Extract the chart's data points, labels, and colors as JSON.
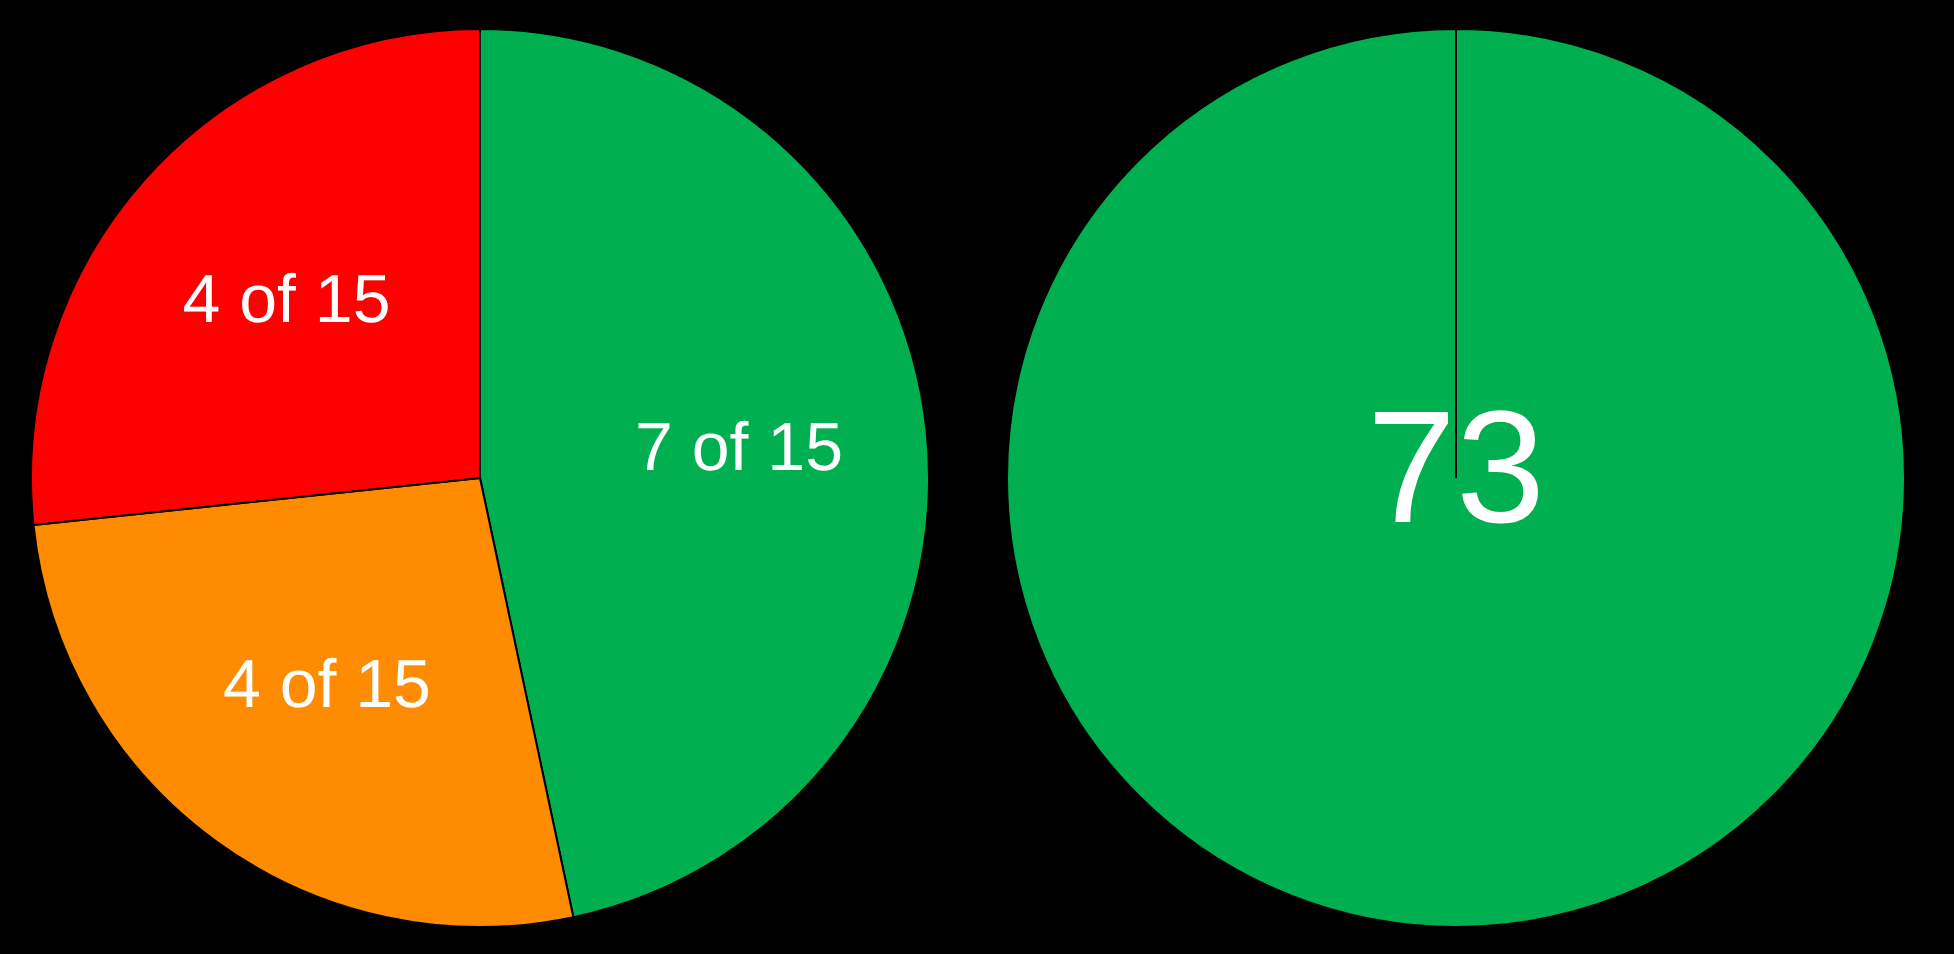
{
  "chart_data": [
    {
      "type": "pie",
      "categories": [
        null,
        null,
        null
      ],
      "values": [
        7,
        4,
        4
      ],
      "colors": [
        "#00b050",
        "#ff8c00",
        "#ff0000"
      ],
      "value_labels": [
        "7 of 15",
        "4 of 15",
        "4 of 15"
      ],
      "legend": false
    },
    {
      "type": "pie",
      "categories": [
        null
      ],
      "values": [
        100
      ],
      "colors": [
        "#00b050"
      ],
      "annotations": [
        "73"
      ],
      "legend": false
    }
  ]
}
